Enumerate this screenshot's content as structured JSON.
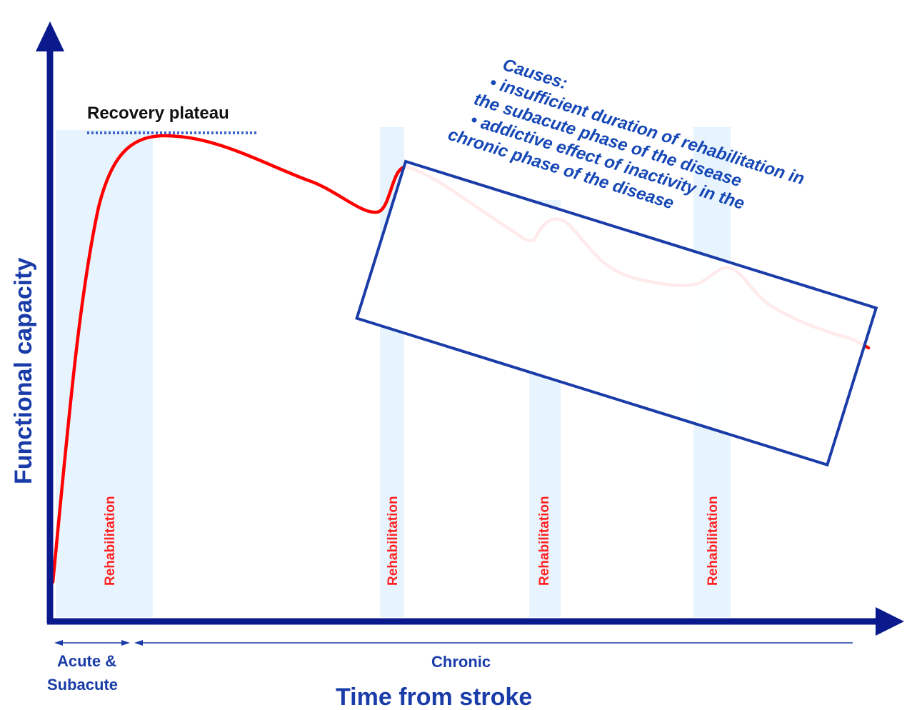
{
  "colors": {
    "axis": "#0a1a8c",
    "curve": "#ff0000",
    "rehab_band": "#e8f4fd",
    "text_blue": "#1a3ca8",
    "box_border": "#1a3ca8",
    "rehab_text": "#ff2020"
  },
  "axes": {
    "y_label": "Functional capacity",
    "x_label": "Time from stroke"
  },
  "phases": {
    "acute_line1": "Acute &",
    "acute_line2": "Subacute",
    "chronic": "Chronic"
  },
  "recovery_plateau": "Recovery plateau",
  "rehab_bands": [
    {
      "label": "Rehabilitation"
    },
    {
      "label": "Rehabilitation"
    },
    {
      "label": "Rehabilitation"
    },
    {
      "label": "Rehabilitation"
    }
  ],
  "causes_box": {
    "lines": [
      "Causes:",
      "• insufficient duration of rehabilitation in",
      "the subacute phase of the disease",
      "• addictive effect of inactivity in the",
      "chronic phase of the disease"
    ]
  }
}
